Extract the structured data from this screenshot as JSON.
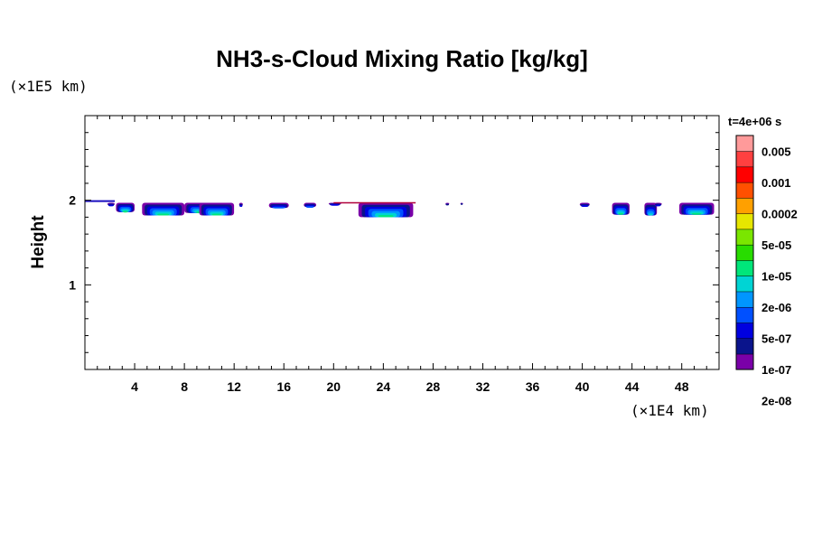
{
  "chart_data": {
    "type": "heatmap",
    "title": "NH3-s-Cloud Mixing Ratio [kg/kg]",
    "ylabel": "Height",
    "x_unit": "(×1E4 km)",
    "y_unit": "(×1E5 km)",
    "time_label": "t=4e+06 s",
    "xlim": [
      0,
      51
    ],
    "ylim": [
      0,
      3
    ],
    "x_ticks": [
      4,
      8,
      12,
      16,
      20,
      24,
      28,
      32,
      36,
      40,
      44,
      48
    ],
    "y_ticks": [
      1,
      2
    ],
    "colorbar": {
      "labels": [
        "0.005",
        "0.001",
        "0.0002",
        "5e-05",
        "1e-05",
        "2e-06",
        "5e-07",
        "1e-07",
        "2e-08"
      ],
      "colors": [
        "#7a00a8",
        "#0a148c",
        "#0000e0",
        "#0050ff",
        "#0096ff",
        "#00d4d4",
        "#00e67a",
        "#28dc00",
        "#7ae600",
        "#e6e600",
        "#ffa000",
        "#ff5000",
        "#ff0000",
        "#ff4040",
        "#ff9a9a"
      ]
    },
    "cloud_top": 1.97,
    "cloud_blobs": [
      {
        "x0": 1.8,
        "x1": 2.4,
        "y0": 1.94,
        "level": 2
      },
      {
        "x0": 2.5,
        "x1": 4.0,
        "y0": 1.86,
        "level": 6
      },
      {
        "x0": 4.6,
        "x1": 8.0,
        "y0": 1.82,
        "level": 6
      },
      {
        "x0": 8.0,
        "x1": 10.6,
        "y0": 1.85,
        "level": 6
      },
      {
        "x0": 9.2,
        "x1": 12.0,
        "y0": 1.82,
        "level": 6
      },
      {
        "x0": 12.4,
        "x1": 12.7,
        "y0": 1.93,
        "level": 2
      },
      {
        "x0": 14.8,
        "x1": 16.4,
        "y0": 1.91,
        "level": 3
      },
      {
        "x0": 17.6,
        "x1": 18.6,
        "y0": 1.92,
        "level": 3
      },
      {
        "x0": 19.6,
        "x1": 20.6,
        "y0": 1.95,
        "level": 2
      },
      {
        "x0": 22.0,
        "x1": 26.4,
        "y0": 1.8,
        "level": 6
      },
      {
        "x0": 29.0,
        "x1": 29.3,
        "y0": 1.95,
        "level": 1
      },
      {
        "x0": 30.2,
        "x1": 30.4,
        "y0": 1.96,
        "level": 1
      },
      {
        "x0": 39.8,
        "x1": 40.6,
        "y0": 1.93,
        "level": 2
      },
      {
        "x0": 42.4,
        "x1": 43.8,
        "y0": 1.83,
        "level": 6
      },
      {
        "x0": 45.0,
        "x1": 46.0,
        "y0": 1.82,
        "level": 5
      },
      {
        "x0": 45.8,
        "x1": 46.4,
        "y0": 1.94,
        "level": 2
      },
      {
        "x0": 47.8,
        "x1": 50.6,
        "y0": 1.83,
        "level": 6
      }
    ]
  }
}
